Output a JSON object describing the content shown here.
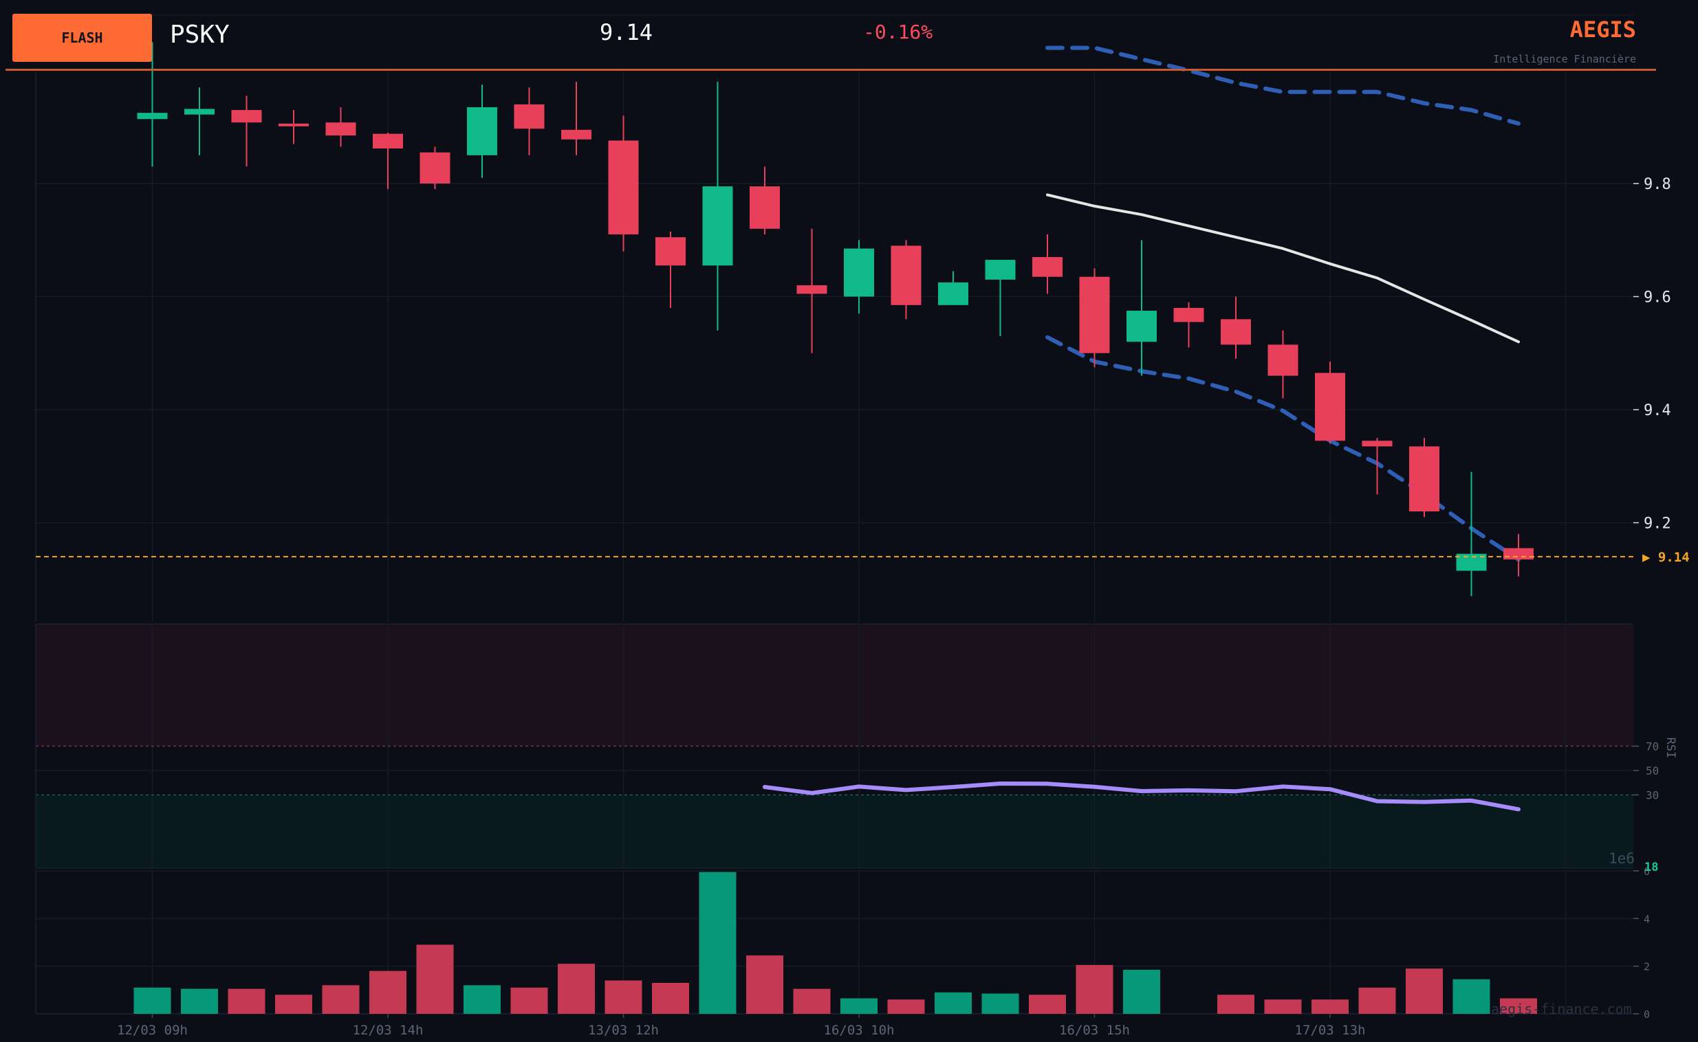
{
  "header": {
    "badge": "FLASH",
    "ticker": "PSKY",
    "last_price": "9.14",
    "change_pct": "-0.16%",
    "brand": "AEGIS",
    "tagline": "Intelligence Financière"
  },
  "footer": {
    "watermark": "aegis-finance.com"
  },
  "colors": {
    "background": "#0b0e16",
    "up": "#0fb98a",
    "down": "#e8405a",
    "accent": "#ff6b35",
    "last_price_line": "#f5a524",
    "bollinger": "#2f5fb5",
    "moving_average": "#e6e6e6",
    "rsi": "#a78bfa"
  },
  "chart_data": [
    {
      "type": "candlestick",
      "title": "",
      "x_labels": [
        "12/03 09h",
        "12/03 14h",
        "13/03 12h",
        "16/03 10h",
        "16/03 15h",
        "17/03 13h"
      ],
      "x_label_indices": [
        0,
        5,
        10,
        15,
        20,
        25
      ],
      "y_ticks": [
        9.2,
        9.4,
        9.6,
        9.8
      ],
      "ylim": [
        8.96,
        10.0
      ],
      "last_price_marker": "▶ 9.14",
      "last_price_value": 9.14,
      "candles": [
        {
          "o": 9.914,
          "h": 10.05,
          "l": 9.83,
          "c": 9.925
        },
        {
          "o": 9.922,
          "h": 9.97,
          "l": 9.85,
          "c": 9.932
        },
        {
          "o": 9.93,
          "h": 9.955,
          "l": 9.83,
          "c": 9.908
        },
        {
          "o": 9.906,
          "h": 9.93,
          "l": 9.87,
          "c": 9.903
        },
        {
          "o": 9.908,
          "h": 9.935,
          "l": 9.865,
          "c": 9.885
        },
        {
          "o": 9.888,
          "h": 9.89,
          "l": 9.79,
          "c": 9.862
        },
        {
          "o": 9.855,
          "h": 9.865,
          "l": 9.79,
          "c": 9.8
        },
        {
          "o": 9.85,
          "h": 9.975,
          "l": 9.81,
          "c": 9.935
        },
        {
          "o": 9.94,
          "h": 9.97,
          "l": 9.85,
          "c": 9.897
        },
        {
          "o": 9.895,
          "h": 9.98,
          "l": 9.85,
          "c": 9.878
        },
        {
          "o": 9.876,
          "h": 9.92,
          "l": 9.68,
          "c": 9.71
        },
        {
          "o": 9.705,
          "h": 9.715,
          "l": 9.58,
          "c": 9.655
        },
        {
          "o": 9.655,
          "h": 9.98,
          "l": 9.54,
          "c": 9.795
        },
        {
          "o": 9.795,
          "h": 9.83,
          "l": 9.71,
          "c": 9.72
        },
        {
          "o": 9.62,
          "h": 9.72,
          "l": 9.5,
          "c": 9.605
        },
        {
          "o": 9.6,
          "h": 9.7,
          "l": 9.57,
          "c": 9.685
        },
        {
          "o": 9.69,
          "h": 9.7,
          "l": 9.56,
          "c": 9.585
        },
        {
          "o": 9.585,
          "h": 9.645,
          "l": 9.585,
          "c": 9.625
        },
        {
          "o": 9.63,
          "h": 9.665,
          "l": 9.53,
          "c": 9.665
        },
        {
          "o": 9.67,
          "h": 9.71,
          "l": 9.605,
          "c": 9.635
        },
        {
          "o": 9.635,
          "h": 9.65,
          "l": 9.475,
          "c": 9.5
        },
        {
          "o": 9.52,
          "h": 9.7,
          "l": 9.46,
          "c": 9.575
        },
        {
          "o": 9.58,
          "h": 9.59,
          "l": 9.51,
          "c": 9.555
        },
        {
          "o": 9.56,
          "h": 9.6,
          "l": 9.49,
          "c": 9.515
        },
        {
          "o": 9.515,
          "h": 9.54,
          "l": 9.42,
          "c": 9.46
        },
        {
          "o": 9.465,
          "h": 9.485,
          "l": 9.34,
          "c": 9.345
        },
        {
          "o": 9.345,
          "h": 9.35,
          "l": 9.25,
          "c": 9.335
        },
        {
          "o": 9.335,
          "h": 9.35,
          "l": 9.21,
          "c": 9.22
        },
        {
          "o": 9.115,
          "h": 9.29,
          "l": 9.07,
          "c": 9.145
        },
        {
          "o": 9.155,
          "h": 9.18,
          "l": 9.105,
          "c": 9.135
        }
      ],
      "overlays": [
        {
          "kind": "moving_average",
          "start_index": 19,
          "values": [
            9.78,
            9.76,
            9.745,
            9.725,
            9.705,
            9.685,
            9.658,
            9.633,
            9.595,
            9.558,
            9.52
          ]
        },
        {
          "kind": "bollinger_upper",
          "start_index": 19,
          "values": [
            10.04,
            10.04,
            10.02,
            10.0,
            9.978,
            9.962,
            9.962,
            9.962,
            9.942,
            9.93,
            9.906
          ]
        },
        {
          "kind": "bollinger_lower",
          "start_index": 19,
          "values": [
            9.528,
            9.485,
            9.468,
            9.455,
            9.432,
            9.398,
            9.345,
            9.305,
            9.25,
            9.19,
            9.135
          ]
        }
      ]
    },
    {
      "type": "line",
      "ylabel": "RSI",
      "y_ticks": [
        30,
        50,
        70
      ],
      "ylim": [
        0,
        100
      ],
      "overbought": 70,
      "oversold": 30,
      "start_index": 13,
      "values": [
        36.5,
        31.5,
        36.8,
        34.0,
        36.5,
        39.3,
        39.1,
        36.6,
        33.1,
        33.7,
        33.0,
        36.8,
        34.7,
        24.9,
        24.2,
        25.3,
        18.2
      ]
    },
    {
      "type": "bar",
      "ylabel": "",
      "scale_label": "1e6",
      "corner_value": "18",
      "y_ticks": [
        0,
        2,
        4,
        6
      ],
      "ylim": [
        0,
        6
      ],
      "values": [
        1.1,
        1.05,
        1.05,
        0.8,
        1.2,
        1.8,
        2.9,
        1.2,
        1.1,
        2.1,
        1.4,
        1.3,
        5.95,
        2.45,
        1.05,
        0.65,
        0.6,
        0.9,
        0.85,
        0.8,
        2.05,
        1.85,
        0,
        0.8,
        0.6,
        0.6,
        1.1,
        1.9,
        1.45,
        0.65
      ],
      "colors_from_candles": true
    }
  ]
}
